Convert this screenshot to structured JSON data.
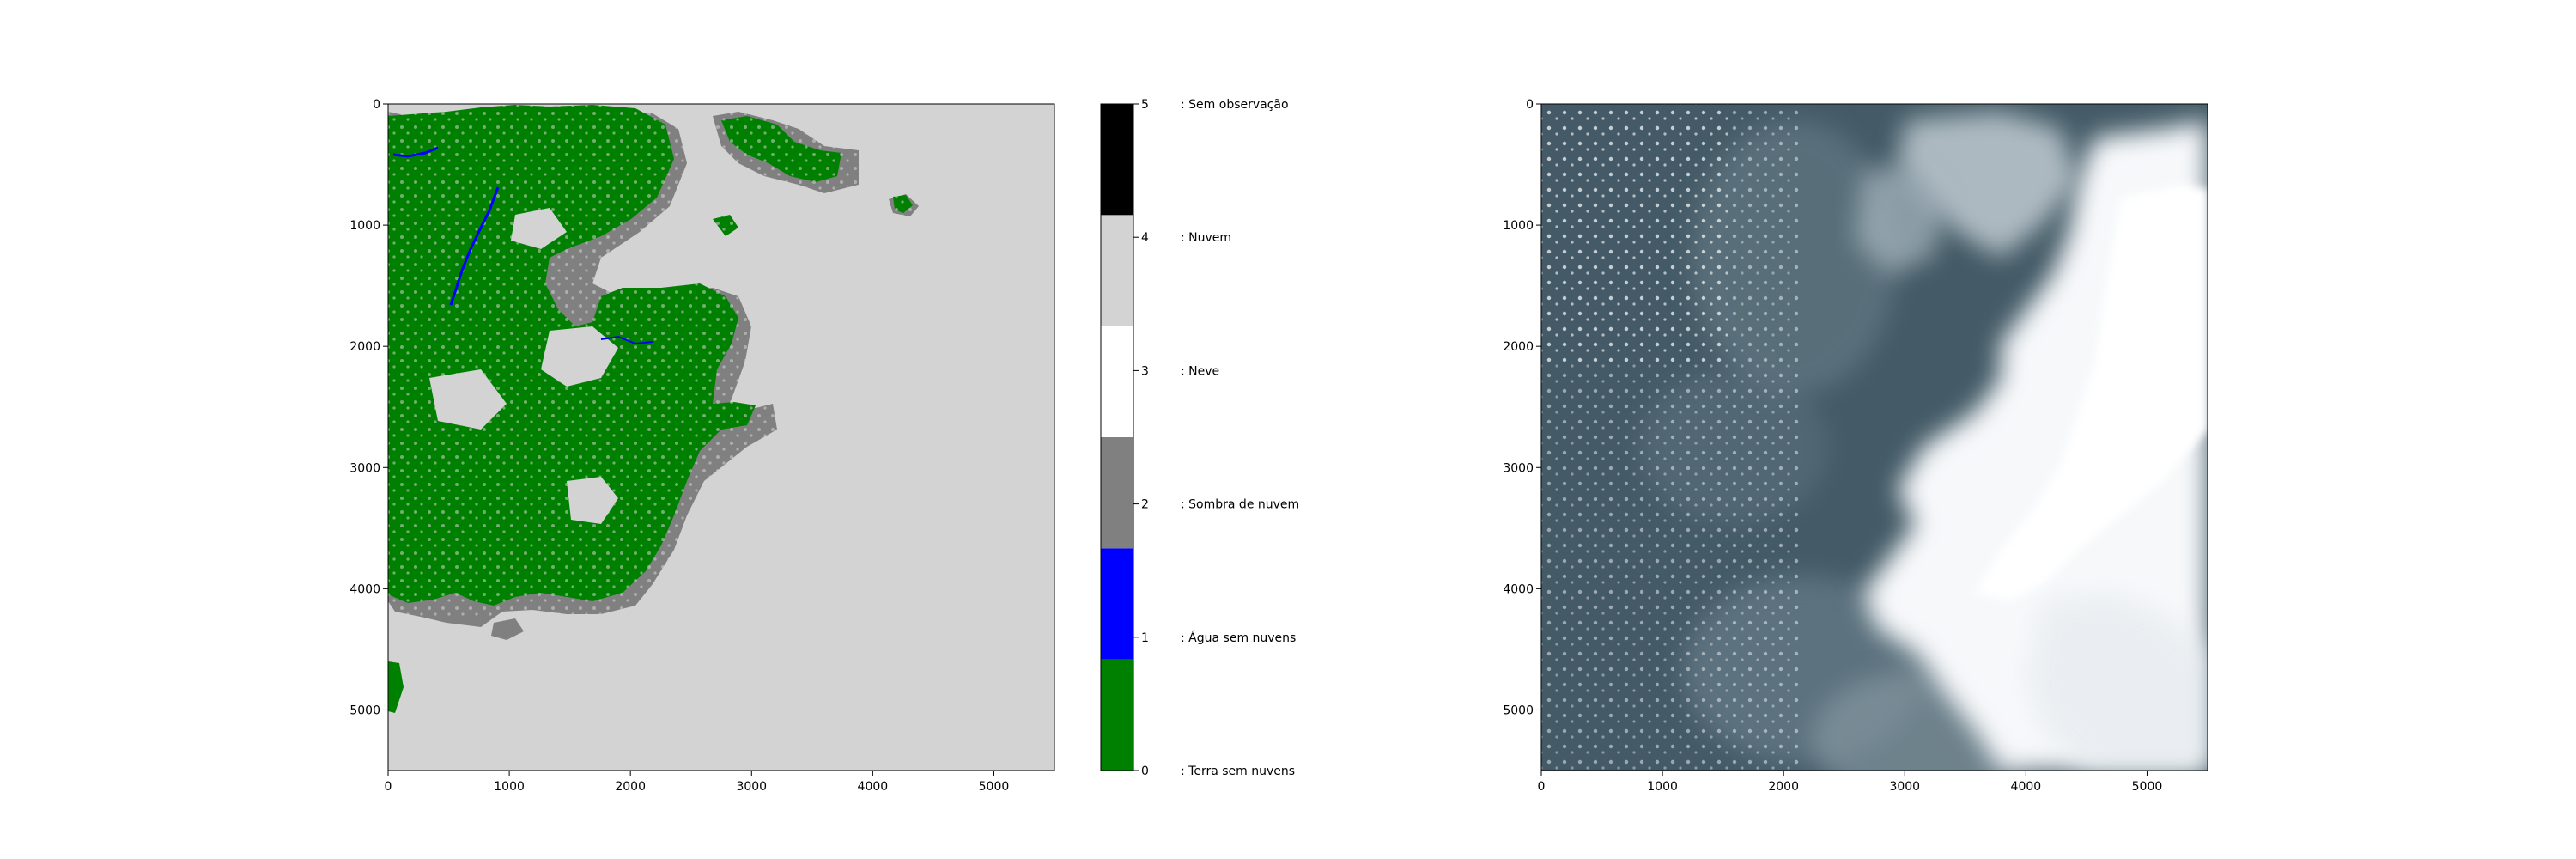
{
  "chart_data": [
    {
      "type": "heatmap",
      "image": "cloud classification mask",
      "xlim": [
        0,
        5500
      ],
      "ylim": [
        5500,
        0
      ],
      "xticks": [
        "0",
        "1000",
        "2000",
        "3000",
        "4000",
        "5000"
      ],
      "yticks": [
        "0",
        "1000",
        "2000",
        "3000",
        "4000",
        "5000"
      ],
      "colors": {
        "land": "#008000",
        "water": "#0000ff",
        "shadow": "#808080",
        "cloud": "#d3d3d3"
      }
    },
    {
      "type": "heatmap",
      "image": "colorbar",
      "ticks": [
        "0",
        "1",
        "2",
        "3",
        "4",
        "5"
      ],
      "classes": [
        {
          "value": 0,
          "label": ": Terra sem nuvens",
          "color": "#008000"
        },
        {
          "value": 1,
          "label": ": Água sem nuvens",
          "color": "#0000ff"
        },
        {
          "value": 2,
          "label": ": Sombra de nuvem",
          "color": "#808080"
        },
        {
          "value": 3,
          "label": ": Neve",
          "color": "#ffffff"
        },
        {
          "value": 4,
          "label": ": Nuvem",
          "color": "#d3d3d3"
        },
        {
          "value": 5,
          "label": ": Sem observação",
          "color": "#000000"
        }
      ]
    },
    {
      "type": "heatmap",
      "image": "satellite true-color image",
      "xlim": [
        0,
        5500
      ],
      "ylim": [
        5500,
        0
      ],
      "xticks": [
        "0",
        "1000",
        "2000",
        "3000",
        "4000",
        "5000"
      ],
      "yticks": [
        "0",
        "1000",
        "2000",
        "3000",
        "4000",
        "5000"
      ],
      "colors": {
        "ocean": "#3e5560",
        "ocean_light": "#5d727d",
        "cloud": "#ffffff",
        "haze": "#b7c3cc"
      }
    }
  ]
}
